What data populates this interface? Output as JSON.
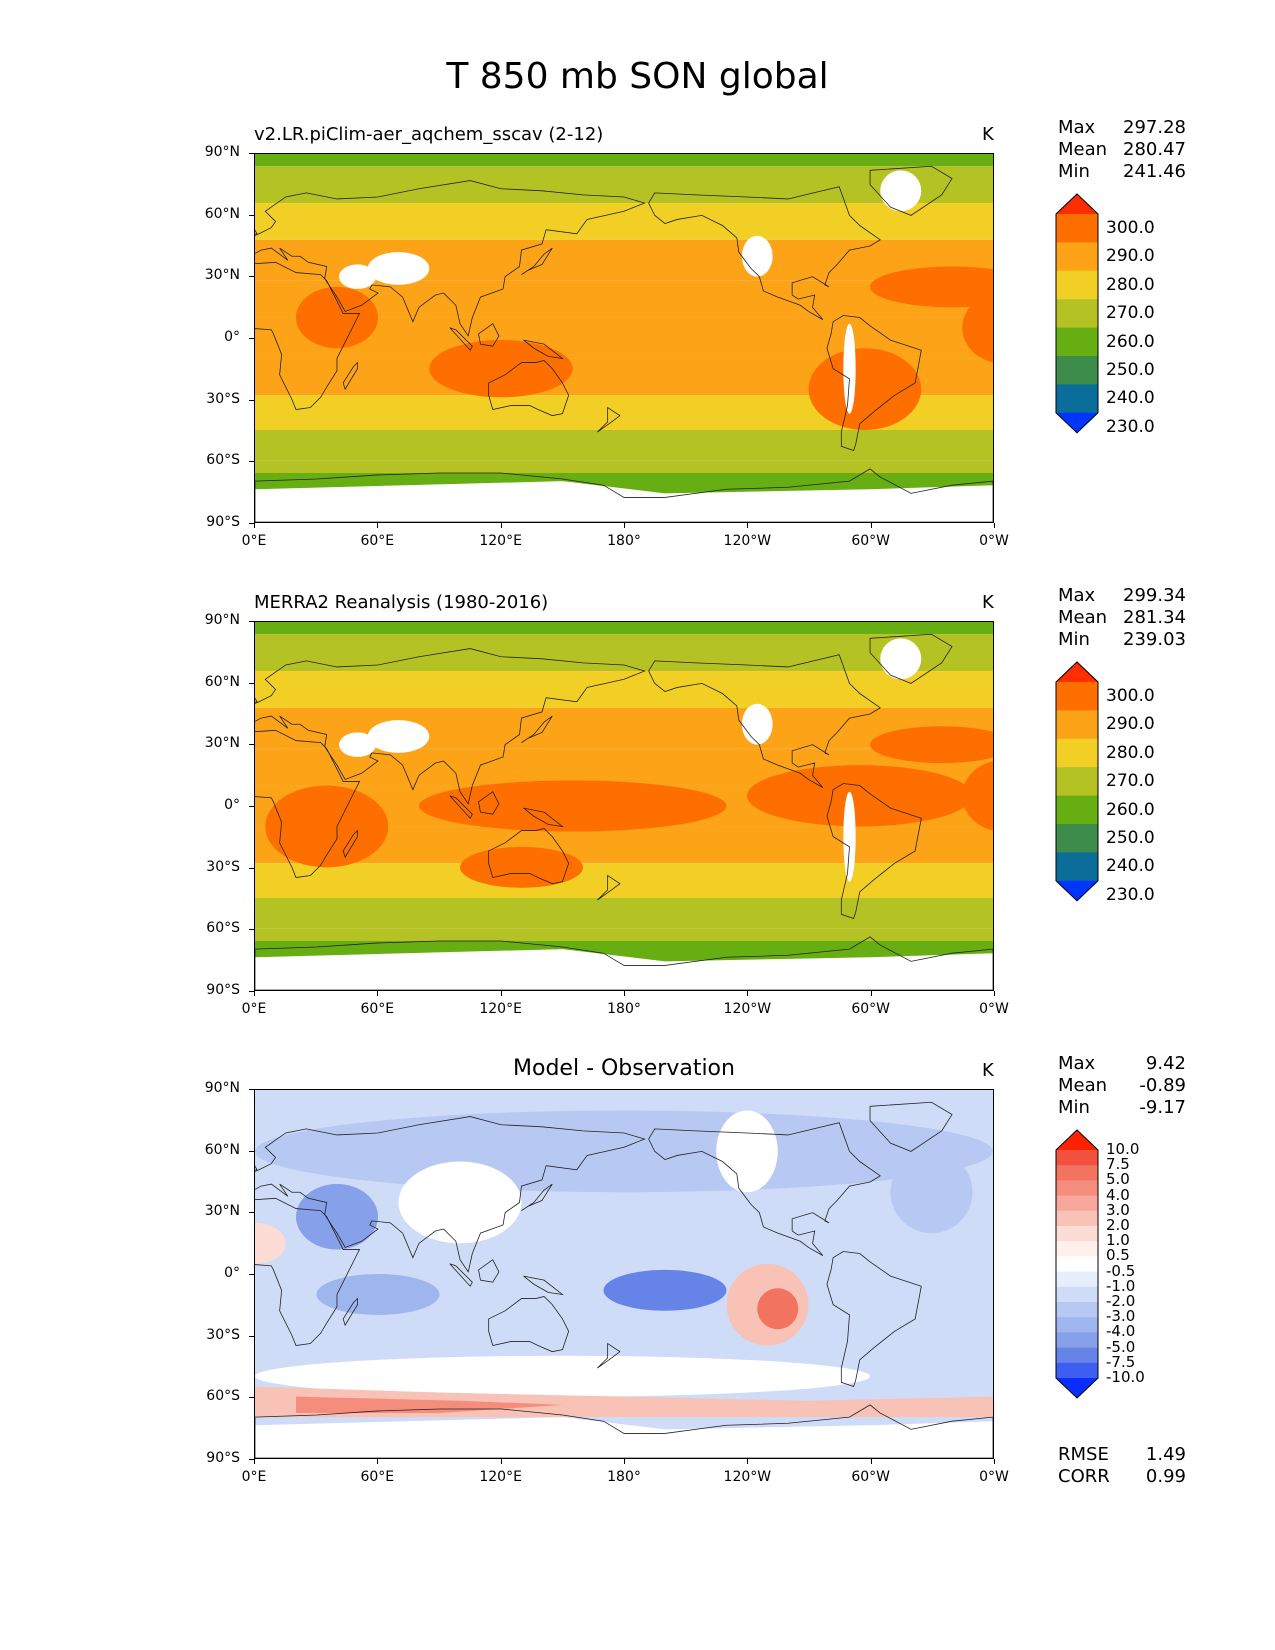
{
  "title": "T 850 mb SON global",
  "y_tick_labels": [
    "90°N",
    "60°N",
    "30°N",
    "0°",
    "30°S",
    "60°S",
    "90°S"
  ],
  "x_tick_labels": [
    "0°E",
    "60°E",
    "120°E",
    "180°",
    "120°W",
    "60°W",
    "0°W"
  ],
  "panels": [
    {
      "title": "v2.LR.piClim-aer_aqchem_sscav (2-12)",
      "unit": "K",
      "stats": {
        "max_label": "Max",
        "max": "297.28",
        "mean_label": "Mean",
        "mean": "280.47",
        "min_label": "Min",
        "min": "241.46"
      },
      "colorbar_labels": [
        "300.0",
        "290.0",
        "280.0",
        "270.0",
        "260.0",
        "250.0",
        "240.0",
        "230.0"
      ]
    },
    {
      "title": "MERRA2 Reanalysis (1980-2016)",
      "unit": "K",
      "stats": {
        "max_label": "Max",
        "max": "299.34",
        "mean_label": "Mean",
        "mean": "281.34",
        "min_label": "Min",
        "min": "239.03"
      },
      "colorbar_labels": [
        "300.0",
        "290.0",
        "280.0",
        "270.0",
        "260.0",
        "250.0",
        "240.0",
        "230.0"
      ]
    },
    {
      "title": "Model - Observation",
      "unit": "K",
      "stats": {
        "max_label": "Max",
        "max": "9.42",
        "mean_label": "Mean",
        "mean": "-0.89",
        "min_label": "Min",
        "min": "-9.17"
      },
      "colorbar_labels": [
        "10.0",
        "7.5",
        "5.0",
        "4.0",
        "3.0",
        "2.0",
        "1.0",
        "0.5",
        "-0.5",
        "-1.0",
        "-2.0",
        "-3.0",
        "-4.0",
        "-5.0",
        "-7.5",
        "-10.0"
      ],
      "metrics": {
        "rmse_label": "RMSE",
        "rmse": "1.49",
        "corr_label": "CORR",
        "corr": "0.99"
      }
    }
  ],
  "colors": {
    "temp_scale": [
      "#ff2e00",
      "#ff6f00",
      "#fca317",
      "#f2cf25",
      "#b5c224",
      "#66ae12",
      "#3d8c49",
      "#0b6e9a",
      "#0034ff"
    ],
    "diff_scale": [
      "#ff2200",
      "#f25140",
      "#f2735f",
      "#f58d7c",
      "#f7a89a",
      "#f9c2b7",
      "#fcdcd4",
      "#fff0ec",
      "#ffffff",
      "#e6edfb",
      "#cfdcf7",
      "#b7c9f2",
      "#9fb5ee",
      "#86a0ea",
      "#6684e8",
      "#3d5ef0",
      "#0a2eff"
    ]
  }
}
